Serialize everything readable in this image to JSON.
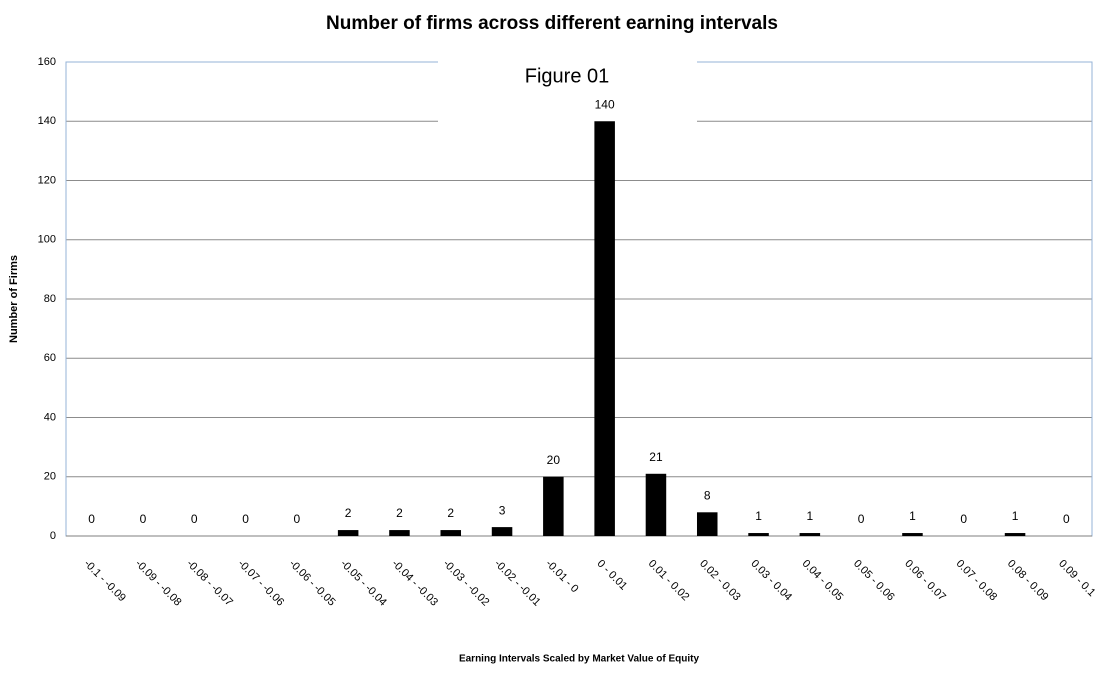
{
  "chart_data": {
    "type": "bar",
    "title": "Number of firms across different earning intervals",
    "annotation": "Figure 01",
    "x_label": "Earning Intervals Scaled by Market Value of Equity",
    "y_label": "Number of Firms",
    "categories": [
      "-0.1 - -0.09",
      "-0.09 - -0.08",
      "-0.08 - -0.07",
      "-0.07 - -0.06",
      "-0.06 - -0.05",
      "-0.05 - -0.04",
      "-0.04 - -0.03",
      "-0.03 - -0.02",
      "-0.02 - -0.01",
      "-0.01 - 0",
      "0 - 0.01",
      "0.01 - 0.02",
      "0.02 - 0.03",
      "0.03 - 0.04",
      "0.04 - 0.05",
      "0.05 - 0.06",
      "0.06 - 0.07",
      "0.07 - 0.08",
      "0.08 - 0.09",
      "0.09 - 0.1"
    ],
    "values": [
      0,
      0,
      0,
      0,
      0,
      2,
      2,
      2,
      3,
      20,
      140,
      21,
      8,
      1,
      1,
      0,
      1,
      0,
      1,
      0
    ],
    "color": "#000000",
    "ylim": [
      0,
      160
    ],
    "yticks": [
      0,
      20,
      40,
      60,
      80,
      100,
      120,
      140,
      160
    ],
    "grid": true
  }
}
